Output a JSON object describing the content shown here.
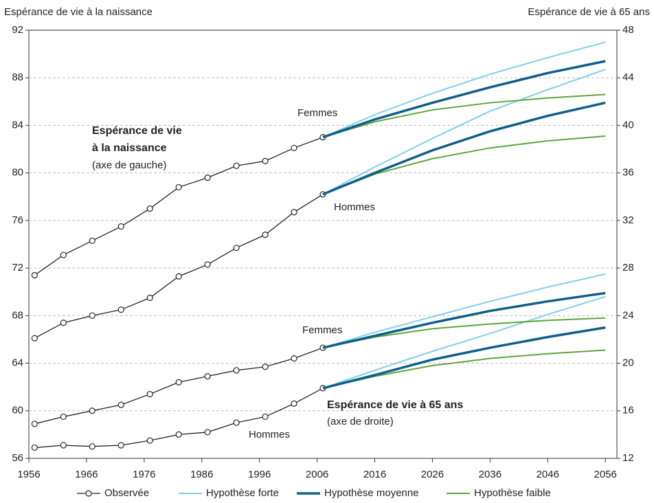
{
  "chart_data": {
    "type": "line",
    "ylabel": "Espérance de vie à la naissance",
    "y2label": "Espérance de vie à 65 ans",
    "xlim": [
      1956,
      2058
    ],
    "xticks": [
      1956,
      1966,
      1976,
      1986,
      1996,
      2006,
      2016,
      2026,
      2036,
      2046,
      2056
    ],
    "ylim": [
      56,
      92
    ],
    "yticks": [
      56,
      60,
      64,
      68,
      72,
      76,
      80,
      84,
      88,
      92
    ],
    "y2lim": [
      12,
      48
    ],
    "y2ticks": [
      12,
      16,
      20,
      24,
      28,
      32,
      36,
      40,
      44,
      48
    ],
    "grid": true,
    "annotations": [
      {
        "text": "Espérance de vie",
        "bold": true
      },
      {
        "text": "à la naissance",
        "bold": true
      },
      {
        "text": "(axe de gauche)",
        "bold": false
      },
      {
        "text": "Femmes",
        "bold": false
      },
      {
        "text": "Hommes",
        "bold": false
      },
      {
        "text": "Femmes",
        "bold": false
      },
      {
        "text": "Hommes",
        "bold": false
      },
      {
        "text": "Espérance de vie à 65 ans",
        "bold": true
      },
      {
        "text": "(axe de droite)",
        "bold": false
      }
    ],
    "series": [
      {
        "name": "Observée",
        "color": "#222222",
        "axis": "y",
        "markers": true,
        "x": [
          1957,
          1962,
          1967,
          1972,
          1977,
          1982,
          1987,
          1992,
          1997,
          2002,
          2007
        ],
        "values": [
          71.4,
          73.1,
          74.3,
          75.5,
          77.0,
          78.8,
          79.6,
          80.6,
          81.0,
          82.1,
          83.0
        ]
      },
      {
        "name": "Observée",
        "color": "#222222",
        "axis": "y",
        "markers": true,
        "x": [
          1957,
          1962,
          1967,
          1972,
          1977,
          1982,
          1987,
          1992,
          1997,
          2002,
          2007
        ],
        "values": [
          66.1,
          67.4,
          68.0,
          68.5,
          69.5,
          71.3,
          72.3,
          73.7,
          74.8,
          76.7,
          78.2
        ]
      },
      {
        "name": "Observée",
        "color": "#222222",
        "axis": "y2",
        "markers": true,
        "x": [
          1957,
          1962,
          1967,
          1972,
          1977,
          1982,
          1987,
          1992,
          1997,
          2002,
          2007
        ],
        "values": [
          14.9,
          15.5,
          16.0,
          16.5,
          17.4,
          18.4,
          18.9,
          19.4,
          19.7,
          20.4,
          21.3
        ]
      },
      {
        "name": "Observée",
        "color": "#222222",
        "axis": "y2",
        "markers": true,
        "x": [
          1957,
          1962,
          1967,
          1972,
          1977,
          1982,
          1987,
          1992,
          1997,
          2002,
          2007
        ],
        "values": [
          12.9,
          13.1,
          13.0,
          13.1,
          13.5,
          14.0,
          14.2,
          15.0,
          15.5,
          16.6,
          17.9
        ]
      },
      {
        "name": "Hypothèse forte",
        "color": "#7dcfee",
        "axis": "y",
        "width": 2,
        "x": [
          2007,
          2016,
          2026,
          2036,
          2046,
          2056
        ],
        "values": [
          83.0,
          84.9,
          86.7,
          88.3,
          89.7,
          91.0
        ]
      },
      {
        "name": "Hypothèse forte",
        "color": "#7dcfee",
        "axis": "y",
        "width": 2,
        "x": [
          2007,
          2016,
          2026,
          2036,
          2046,
          2056
        ],
        "values": [
          78.2,
          80.5,
          82.9,
          85.2,
          87.0,
          88.7
        ]
      },
      {
        "name": "Hypothèse forte",
        "color": "#7dcfee",
        "axis": "y2",
        "width": 2,
        "x": [
          2007,
          2016,
          2026,
          2036,
          2046,
          2056
        ],
        "values": [
          21.3,
          22.6,
          23.9,
          25.2,
          26.4,
          27.5
        ]
      },
      {
        "name": "Hypothèse forte",
        "color": "#7dcfee",
        "axis": "y2",
        "width": 2,
        "x": [
          2007,
          2016,
          2026,
          2036,
          2046,
          2056
        ],
        "values": [
          17.9,
          19.4,
          21.0,
          22.5,
          24.1,
          25.6
        ]
      },
      {
        "name": "Hypothèse faible",
        "color": "#5ca63a",
        "axis": "y",
        "width": 2,
        "x": [
          2007,
          2016,
          2026,
          2036,
          2046,
          2056
        ],
        "values": [
          83.0,
          84.3,
          85.3,
          85.9,
          86.3,
          86.6
        ]
      },
      {
        "name": "Hypothèse faible",
        "color": "#5ca63a",
        "axis": "y",
        "width": 2,
        "x": [
          2007,
          2016,
          2026,
          2036,
          2046,
          2056
        ],
        "values": [
          78.2,
          79.9,
          81.2,
          82.1,
          82.7,
          83.1
        ]
      },
      {
        "name": "Hypothèse faible",
        "color": "#5ca63a",
        "axis": "y2",
        "width": 2,
        "x": [
          2007,
          2016,
          2026,
          2036,
          2046,
          2056
        ],
        "values": [
          21.3,
          22.2,
          22.9,
          23.3,
          23.6,
          23.8
        ]
      },
      {
        "name": "Hypothèse faible",
        "color": "#5ca63a",
        "axis": "y2",
        "width": 2,
        "x": [
          2007,
          2016,
          2026,
          2036,
          2046,
          2056
        ],
        "values": [
          17.9,
          18.9,
          19.8,
          20.4,
          20.8,
          21.1
        ]
      },
      {
        "name": "Hypothèse moyenne",
        "color": "#0d5f8a",
        "axis": "y",
        "width": 3.5,
        "x": [
          2007,
          2016,
          2026,
          2036,
          2046,
          2056
        ],
        "values": [
          83.0,
          84.5,
          85.9,
          87.2,
          88.4,
          89.4
        ]
      },
      {
        "name": "Hypothèse moyenne",
        "color": "#0d5f8a",
        "axis": "y",
        "width": 3.5,
        "x": [
          2007,
          2016,
          2026,
          2036,
          2046,
          2056
        ],
        "values": [
          78.2,
          80.0,
          81.9,
          83.5,
          84.8,
          85.9
        ]
      },
      {
        "name": "Hypothèse moyenne",
        "color": "#0d5f8a",
        "axis": "y2",
        "width": 3.5,
        "x": [
          2007,
          2016,
          2026,
          2036,
          2046,
          2056
        ],
        "values": [
          21.3,
          22.3,
          23.4,
          24.4,
          25.2,
          25.9
        ]
      },
      {
        "name": "Hypothèse moyenne",
        "color": "#0d5f8a",
        "axis": "y2",
        "width": 3.5,
        "x": [
          2007,
          2016,
          2026,
          2036,
          2046,
          2056
        ],
        "values": [
          17.9,
          19.0,
          20.3,
          21.3,
          22.2,
          23.0
        ]
      }
    ]
  }
}
